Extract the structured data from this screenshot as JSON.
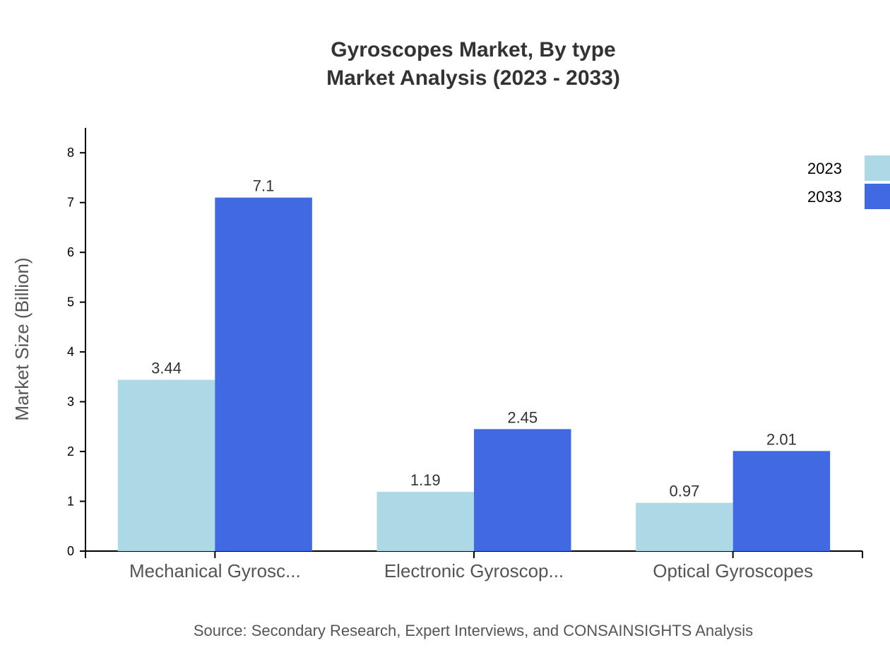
{
  "chart_data": {
    "type": "bar",
    "title": "Gyroscopes Market, By type",
    "subtitle": "Market Analysis (2023 - 2033)",
    "xlabel": "",
    "ylabel": "Market Size (Billion)",
    "ylim": [
      0,
      8.5
    ],
    "yticks": [
      0,
      1,
      2,
      3,
      4,
      5,
      6,
      7,
      8
    ],
    "categories": [
      "Mechanical Gyrosc...",
      "Electronic Gyroscop...",
      "Optical Gyroscopes"
    ],
    "series": [
      {
        "name": "2023",
        "values": [
          3.44,
          1.19,
          0.97
        ],
        "labels": [
          "3.44",
          "1.19",
          "0.97"
        ],
        "color": "#add8e6"
      },
      {
        "name": "2033",
        "values": [
          7.1,
          2.45,
          2.01
        ],
        "labels": [
          "7.1",
          "2.45",
          "2.01"
        ],
        "color": "#4169e1"
      }
    ],
    "grid": false,
    "legend": "top-right",
    "source": "Source: Secondary Research, Expert Interviews, and CONSAINSIGHTS Analysis"
  }
}
